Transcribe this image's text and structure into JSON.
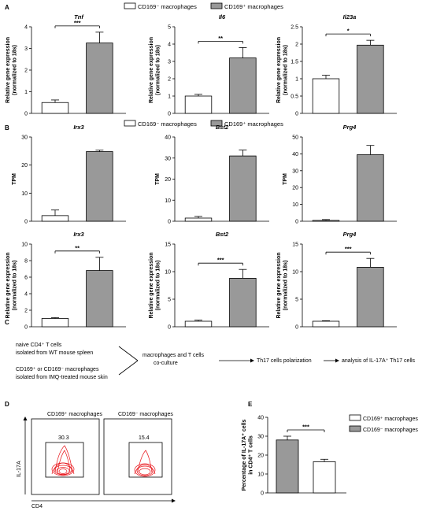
{
  "panel_labels": [
    "A",
    "B",
    "C",
    "D",
    "E"
  ],
  "legend_A": {
    "neg": "CD169⁻ macrophages",
    "pos": "CD169⁺ macrophages"
  },
  "legend_B": {
    "neg": "CD169⁻ macrophages",
    "pos": "CD169⁺ macrophages"
  },
  "legend_E": {
    "pos": "CD169⁺ macrophages",
    "neg": "CD169⁻ macrophages"
  },
  "colors": {
    "neg_fill": "#ffffff",
    "pos_fill": "#999999",
    "stroke": "#000000",
    "flow": "#e8141a"
  },
  "chart_data": [
    {
      "id": "A1",
      "type": "bar",
      "title": "Tnf",
      "ylabel": "Relative gene expression (normalized to 18s)",
      "ylim": [
        0,
        4
      ],
      "yticks": [
        0,
        1,
        2,
        3,
        4
      ],
      "categories": [
        "CD169- macrophages",
        "CD169+ macrophages"
      ],
      "values": [
        0.5,
        3.25
      ],
      "errors": [
        0.12,
        0.5
      ],
      "significance": "***"
    },
    {
      "id": "A2",
      "type": "bar",
      "title": "Il6",
      "ylabel": "Relative gene expression (normalized to 18s)",
      "ylim": [
        0,
        5
      ],
      "yticks": [
        0,
        1,
        2,
        3,
        4,
        5
      ],
      "categories": [
        "CD169- macrophages",
        "CD169+ macrophages"
      ],
      "values": [
        1.0,
        3.2
      ],
      "errors": [
        0.1,
        0.6
      ],
      "significance": "**"
    },
    {
      "id": "A3",
      "type": "bar",
      "title": "Il23a",
      "ylabel": "Relative gene expression (normalized to 18s)",
      "ylim": [
        0,
        2.5
      ],
      "yticks": [
        0,
        0.5,
        1.0,
        1.5,
        2.0,
        2.5
      ],
      "categories": [
        "CD169- macrophages",
        "CD169+ macrophages"
      ],
      "values": [
        1.0,
        1.97
      ],
      "errors": [
        0.1,
        0.14
      ],
      "significance": "*"
    },
    {
      "id": "B1",
      "type": "bar",
      "title": "Irx3",
      "ylabel": "TPM",
      "ylim": [
        0,
        30
      ],
      "yticks": [
        0,
        10,
        20,
        30
      ],
      "categories": [
        "CD169- macrophages",
        "CD169+ macrophages"
      ],
      "values": [
        2.0,
        24.8
      ],
      "errors": [
        2.0,
        0.5
      ],
      "significance": ""
    },
    {
      "id": "B2",
      "type": "bar",
      "title": "Bst2",
      "ylabel": "TPM",
      "ylim": [
        0,
        40
      ],
      "yticks": [
        0,
        10,
        20,
        30,
        40
      ],
      "categories": [
        "CD169- macrophages",
        "CD169+ macrophages"
      ],
      "values": [
        1.5,
        31
      ],
      "errors": [
        0.8,
        2.8
      ],
      "significance": ""
    },
    {
      "id": "B3",
      "type": "bar",
      "title": "Prg4",
      "ylabel": "TPM",
      "ylim": [
        0,
        50
      ],
      "yticks": [
        0,
        10,
        20,
        30,
        40,
        50
      ],
      "categories": [
        "CD169- macrophages",
        "CD169+ macrophages"
      ],
      "values": [
        0.5,
        39.5
      ],
      "errors": [
        0.5,
        5.5
      ],
      "significance": ""
    },
    {
      "id": "B4",
      "type": "bar",
      "title": "Irx3",
      "ylabel": "Relative gene expression (normalized to 18s)",
      "ylim": [
        0,
        10
      ],
      "yticks": [
        0,
        2,
        4,
        6,
        8,
        10
      ],
      "categories": [
        "CD169- macrophages",
        "CD169+ macrophages"
      ],
      "values": [
        1.0,
        6.8
      ],
      "errors": [
        0.1,
        1.6
      ],
      "significance": "**"
    },
    {
      "id": "B5",
      "type": "bar",
      "title": "Bst2",
      "ylabel": "Relative gene expression (normalized to 18s)",
      "ylim": [
        0,
        15
      ],
      "yticks": [
        0,
        5,
        10,
        15
      ],
      "categories": [
        "CD169- macrophages",
        "CD169+ macrophages"
      ],
      "values": [
        1.0,
        8.8
      ],
      "errors": [
        0.2,
        1.6
      ],
      "significance": "***"
    },
    {
      "id": "B6",
      "type": "bar",
      "title": "Prg4",
      "ylabel": "Relative gene expression (normalized to 18s)",
      "ylim": [
        0,
        15
      ],
      "yticks": [
        0,
        5,
        10,
        15
      ],
      "categories": [
        "CD169- macrophages",
        "CD169+ macrophages"
      ],
      "values": [
        1.0,
        10.8
      ],
      "errors": [
        0.1,
        1.6
      ],
      "significance": "***"
    },
    {
      "id": "E",
      "type": "bar",
      "title": "",
      "ylabel": "Percentage of IL-17A⁺ cells in CD4⁺ T cells",
      "ylim": [
        0,
        40
      ],
      "yticks": [
        0,
        10,
        20,
        30,
        40
      ],
      "categories": [
        "CD169+ macrophages",
        "CD169- macrophages"
      ],
      "values": [
        28,
        16.5
      ],
      "errors": [
        2.0,
        1.3
      ],
      "significance": "***"
    }
  ],
  "schematic": {
    "line1a": "naive CD4⁺ T cells",
    "line1b": "isolated from WT mouse spleen",
    "line2a": "CD169⁺ or CD169⁻ macrophages",
    "line2b": "isolated from IMQ-treated mouse skin",
    "step1a": "macrophages and T cells",
    "step1b": "co-culture",
    "step2": "Th17 cells polarization",
    "step3": "analysis of IL-17A⁺ Th17 cells"
  },
  "flow": {
    "plot1_title": "CD169⁺ macrophages",
    "plot2_title": "CD169⁻ macrophages",
    "plot1_value": "30.3",
    "plot2_value": "15.4",
    "xlabel": "CD4",
    "ylabel": "IL-17A"
  }
}
